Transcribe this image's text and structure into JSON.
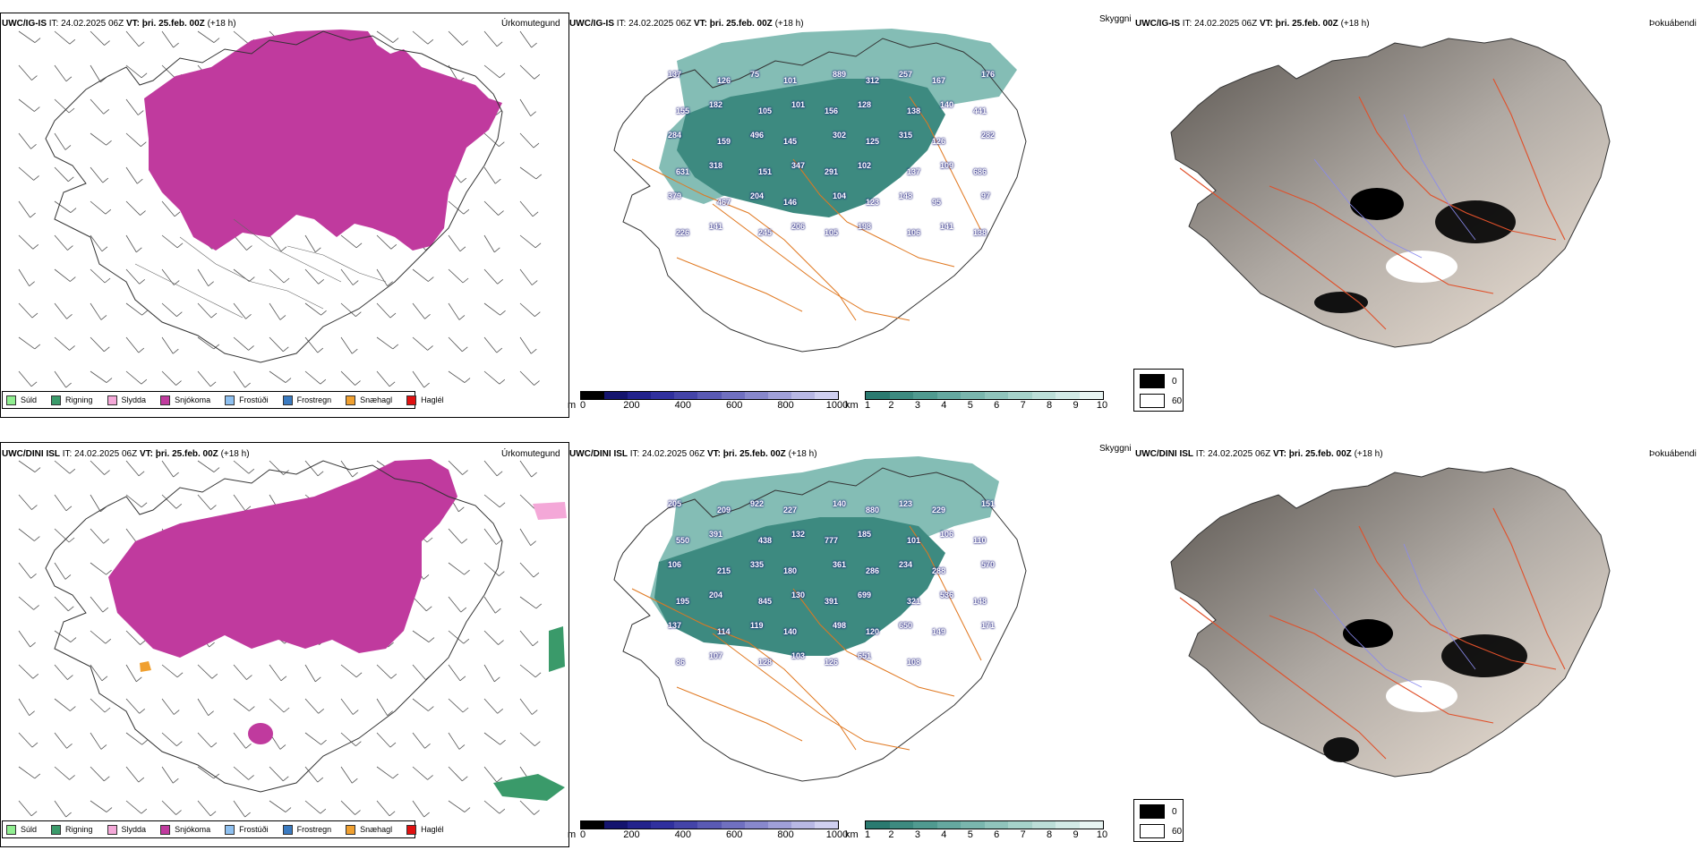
{
  "rows": [
    {
      "id": "top",
      "model": "UWC/IG-IS",
      "it_label": "IT:",
      "it_value": "24.02.2025 06Z",
      "vt_label": "VT:",
      "vt_value": "þri. 25.feb. 00Z",
      "lead": "(+18 h)",
      "precip_type_var": "Úrkomutegund",
      "cloud_var": "Skyggni",
      "fog_var": "Þokuábendi",
      "cloud_values": [
        "137",
        "126",
        "75",
        "101",
        "889",
        "312",
        "257",
        "167",
        "176",
        "155",
        "182",
        "105",
        "101",
        "156",
        "128",
        "138",
        "140",
        "441",
        "284",
        "159",
        "496",
        "145",
        "302",
        "125",
        "315",
        "126",
        "282",
        "631",
        "318",
        "151",
        "347",
        "291",
        "102",
        "137",
        "109",
        "686",
        "379",
        "467",
        "204",
        "146",
        "104",
        "123",
        "148",
        "95",
        "97",
        "226",
        "141",
        "245",
        "206",
        "105",
        "198",
        "106",
        "141",
        "138"
      ]
    },
    {
      "id": "bottom",
      "model": "UWC/DINI ISL",
      "it_label": "IT:",
      "it_value": "24.02.2025 06Z",
      "vt_label": "VT:",
      "vt_value": "þri. 25.feb. 00Z",
      "lead": "(+18 h)",
      "precip_type_var": "Úrkomutegund",
      "cloud_var": "Skyggni",
      "fog_var": "Þokuábendi",
      "cloud_values": [
        "205",
        "209",
        "922",
        "227",
        "140",
        "880",
        "123",
        "229",
        "151",
        "550",
        "391",
        "438",
        "132",
        "777",
        "185",
        "101",
        "106",
        "110",
        "106",
        "215",
        "335",
        "180",
        "361",
        "286",
        "234",
        "288",
        "570",
        "195",
        "204",
        "845",
        "130",
        "391",
        "699",
        "321",
        "536",
        "148",
        "137",
        "114",
        "119",
        "140",
        "498",
        "120",
        "650",
        "149",
        "171",
        "86",
        "107",
        "128",
        "103",
        "126",
        "651",
        "108"
      ]
    }
  ],
  "precip_legend": [
    {
      "label": "Súld",
      "color": "#90ee90"
    },
    {
      "label": "Rigning",
      "color": "#3a9a6a"
    },
    {
      "label": "Slydda",
      "color": "#f4a8d8"
    },
    {
      "label": "Snjókoma",
      "color": "#c03a9e"
    },
    {
      "label": "Frostúði",
      "color": "#8ec0f0"
    },
    {
      "label": "Frostregn",
      "color": "#3a7ac0"
    },
    {
      "label": "Snæhagl",
      "color": "#f0a030"
    },
    {
      "label": "Haglél",
      "color": "#e01010"
    }
  ],
  "cloudbase_bar": {
    "unit": "m",
    "ticks": [
      "0",
      "200",
      "400",
      "600",
      "800",
      "1000"
    ],
    "colors": [
      "#000000",
      "#14146e",
      "#22228c",
      "#30309e",
      "#4444a8",
      "#5a5ab4",
      "#7070c0",
      "#8888cc",
      "#a0a0d8",
      "#b8b8e4",
      "#d0d0f0"
    ]
  },
  "visibility_bar": {
    "unit": "km",
    "ticks": [
      "1",
      "2",
      "3",
      "4",
      "5",
      "6",
      "7",
      "8",
      "9",
      "10"
    ],
    "colors": [
      "#2a7a70",
      "#3d8a80",
      "#509a90",
      "#65a8a0",
      "#7ab6ae",
      "#90c4bc",
      "#a6d2ca",
      "#bcded8",
      "#d2eae6",
      "#e8f4f2"
    ]
  },
  "fog_legend": [
    {
      "label": "0",
      "color": "#000000"
    },
    {
      "label": "60",
      "color": "#ffffff"
    }
  ]
}
